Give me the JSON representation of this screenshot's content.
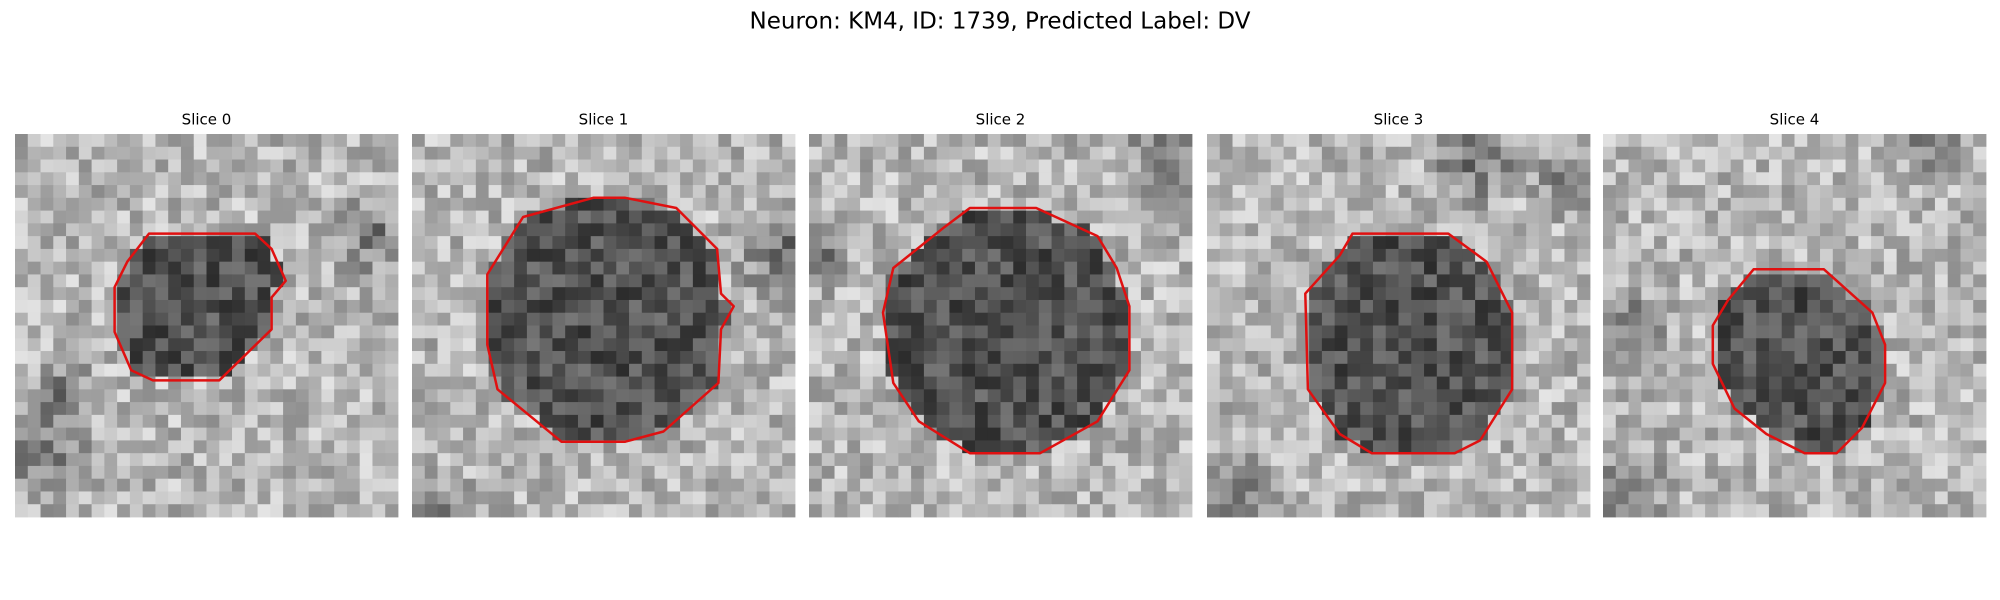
{
  "title": "Neuron: KM4, ID: 1739, Predicted Label: DV",
  "panels": [
    {
      "title": "Slice 0"
    },
    {
      "title": "Slice 1"
    },
    {
      "title": "Slice 2"
    },
    {
      "title": "Slice 3"
    },
    {
      "title": "Slice 4"
    }
  ]
}
